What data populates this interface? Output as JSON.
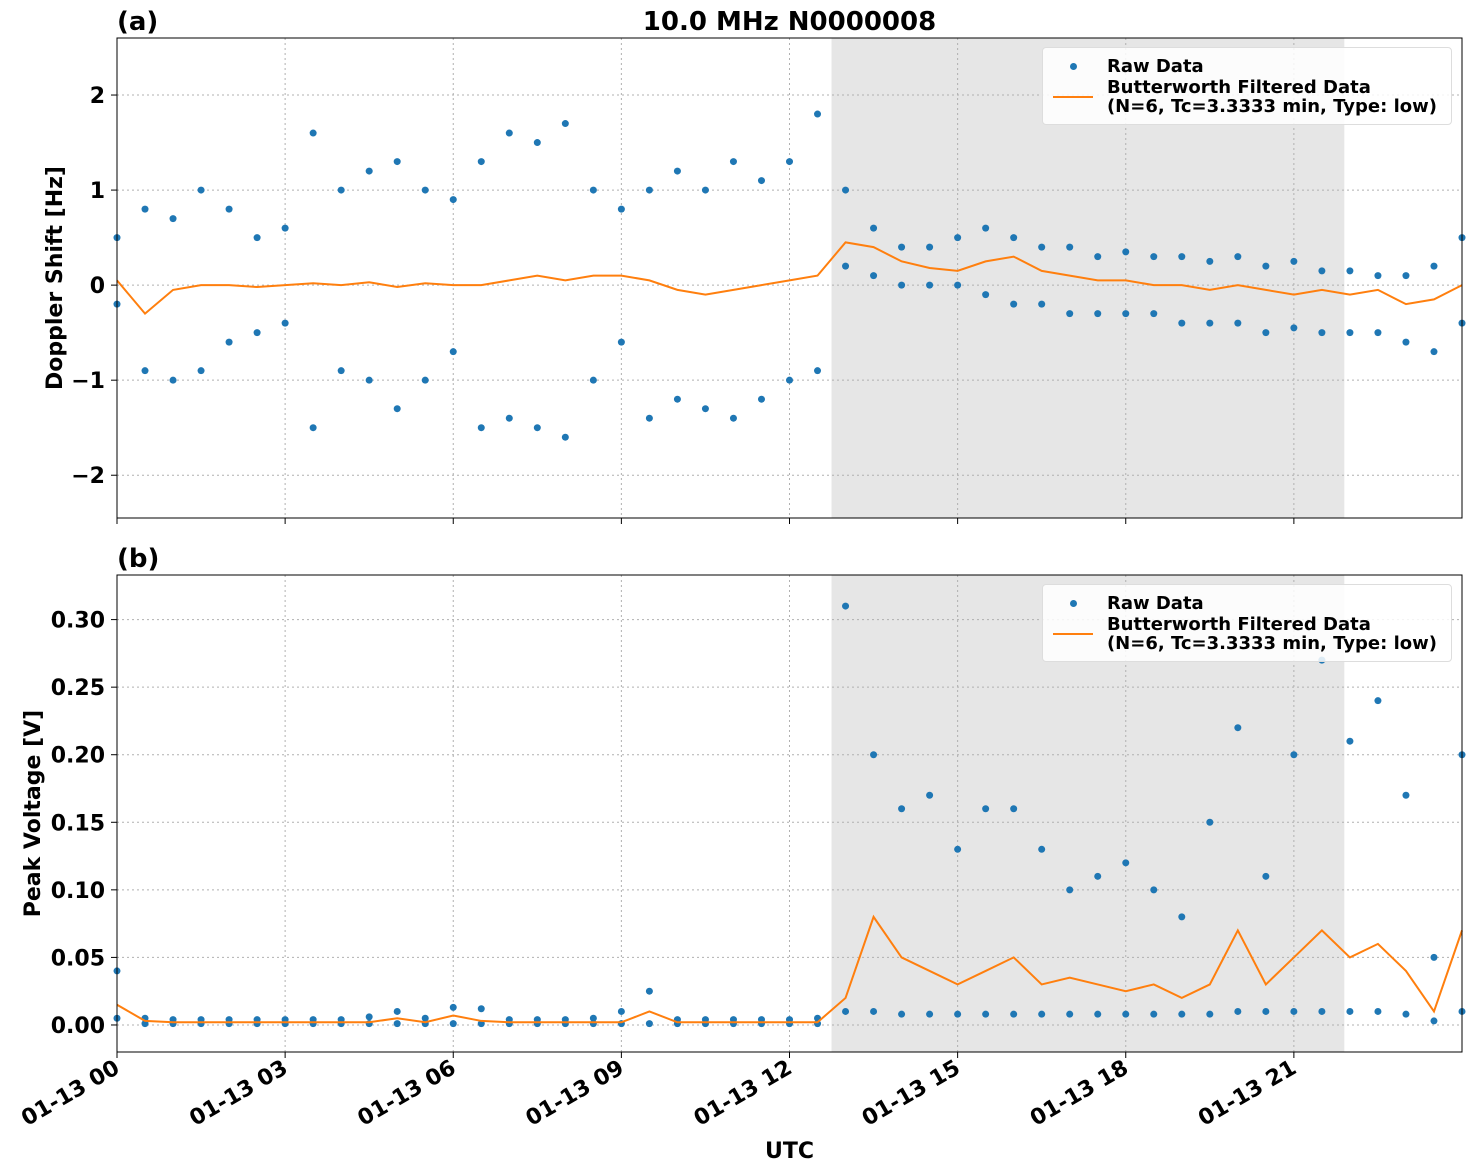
{
  "chart_data": [
    {
      "type": "scatter",
      "title": "10.0 MHz N0000008",
      "panel_label": "(a)",
      "ylabel": "Doppler Shift [Hz]",
      "xlim": [
        0,
        24
      ],
      "xticks": [
        0,
        3,
        6,
        9,
        12,
        15,
        18,
        21
      ],
      "xtick_labels": false,
      "ylim": [
        -2.45,
        2.6
      ],
      "yticks": [
        {
          "value": -2,
          "label": "−2"
        },
        {
          "value": -1,
          "label": "−1"
        },
        0,
        1,
        2
      ],
      "grid": true,
      "shade": [
        12.75,
        21.9
      ],
      "legend": "upper right",
      "series": [
        {
          "name": "Raw Data",
          "color": "#1f77b4",
          "kind": "points",
          "x": [
            0,
            0,
            0.5,
            0.5,
            1,
            1,
            1.5,
            1.5,
            2,
            2,
            2.5,
            2.5,
            3,
            3,
            3.5,
            3.5,
            4,
            4,
            4.5,
            4.5,
            5,
            5,
            5.5,
            5.5,
            6,
            6,
            6.5,
            6.5,
            7,
            7,
            7.5,
            7.5,
            8,
            8,
            8.5,
            8.5,
            9,
            9,
            9.5,
            9.5,
            10,
            10,
            10.5,
            10.5,
            11,
            11,
            11.5,
            11.5,
            12,
            12,
            12.5,
            12.5,
            13,
            13,
            13.5,
            13.5,
            14,
            14,
            14.5,
            14.5,
            15,
            15,
            15.5,
            15.5,
            16,
            16,
            16.5,
            16.5,
            17,
            17,
            17.5,
            17.5,
            18,
            18,
            18.5,
            18.5,
            19,
            19,
            19.5,
            19.5,
            20,
            20,
            20.5,
            20.5,
            21,
            21,
            21.5,
            21.5,
            22,
            22,
            22.5,
            22.5,
            23,
            23,
            23.5,
            23.5,
            24,
            24
          ],
          "values": [
            0.5,
            -0.2,
            0.8,
            -0.9,
            0.7,
            -1.0,
            1.0,
            -0.9,
            0.8,
            -0.6,
            0.5,
            -0.5,
            0.6,
            -0.4,
            1.6,
            -1.5,
            1.0,
            -0.9,
            1.2,
            -1.0,
            1.3,
            -1.3,
            1.0,
            -1.0,
            0.9,
            -0.7,
            1.3,
            -1.5,
            1.6,
            -1.4,
            1.5,
            -1.5,
            1.7,
            -1.6,
            1.0,
            -1.0,
            0.8,
            -0.6,
            1.0,
            -1.4,
            1.2,
            -1.2,
            1.0,
            -1.3,
            1.3,
            -1.4,
            1.1,
            -1.2,
            1.3,
            -1.0,
            1.8,
            -0.9,
            1.0,
            0.2,
            0.6,
            0.1,
            0.4,
            0,
            0.4,
            0,
            0.5,
            0,
            0.6,
            -0.1,
            0.5,
            -0.2,
            0.4,
            -0.2,
            0.4,
            -0.3,
            0.3,
            -0.3,
            0.35,
            -0.3,
            0.3,
            -0.3,
            0.3,
            -0.4,
            0.25,
            -0.4,
            0.3,
            -0.4,
            0.2,
            -0.5,
            0.25,
            -0.45,
            0.15,
            -0.5,
            0.15,
            -0.5,
            0.1,
            -0.5,
            0.1,
            -0.6,
            0.2,
            -0.7,
            0.5,
            -0.4
          ]
        },
        {
          "name": "Butterworth Filtered Data\n(N=6, Tc=3.3333 min, Type: low)",
          "color": "#ff7f0e",
          "kind": "line",
          "x": [
            0,
            0.5,
            1,
            1.5,
            2,
            2.5,
            3,
            3.5,
            4,
            4.5,
            5,
            5.5,
            6,
            6.5,
            7,
            7.5,
            8,
            8.5,
            9,
            9.5,
            10,
            10.5,
            11,
            11.5,
            12,
            12.5,
            13,
            13.5,
            14,
            14.5,
            15,
            15.5,
            16,
            16.5,
            17,
            17.5,
            18,
            18.5,
            19,
            19.5,
            20,
            20.5,
            21,
            21.5,
            22,
            22.5,
            23,
            23.5,
            24
          ],
          "values": [
            0.05,
            -0.3,
            -0.05,
            0,
            0,
            -0.02,
            0,
            0.02,
            0,
            0.03,
            -0.02,
            0.02,
            0,
            0,
            0.05,
            0.1,
            0.05,
            0.1,
            0.1,
            0.05,
            -0.05,
            -0.1,
            -0.05,
            0,
            0.05,
            0.1,
            0.45,
            0.4,
            0.25,
            0.18,
            0.15,
            0.25,
            0.3,
            0.15,
            0.1,
            0.05,
            0.05,
            0,
            0,
            -0.05,
            0,
            -0.05,
            -0.1,
            -0.05,
            -0.1,
            -0.05,
            -0.2,
            -0.15,
            0
          ]
        }
      ]
    },
    {
      "type": "scatter",
      "panel_label": "(b)",
      "ylabel": "Peak Voltage [V]",
      "xlabel": "UTC",
      "xlim": [
        0,
        24
      ],
      "xticks": [
        {
          "value": 0,
          "label": "01-13 00"
        },
        {
          "value": 3,
          "label": "01-13 03"
        },
        {
          "value": 6,
          "label": "01-13 06"
        },
        {
          "value": 9,
          "label": "01-13 09"
        },
        {
          "value": 12,
          "label": "01-13 12"
        },
        {
          "value": 15,
          "label": "01-13 15"
        },
        {
          "value": 18,
          "label": "01-13 18"
        },
        {
          "value": 21,
          "label": "01-13 21"
        }
      ],
      "xtick_labels": true,
      "ylim": [
        -0.02,
        0.333
      ],
      "yticks": [
        {
          "value": 0,
          "label": "0.00"
        },
        {
          "value": 0.05,
          "label": "0.05"
        },
        {
          "value": 0.1,
          "label": "0.10"
        },
        {
          "value": 0.15,
          "label": "0.15"
        },
        {
          "value": 0.2,
          "label": "0.20"
        },
        {
          "value": 0.25,
          "label": "0.25"
        },
        {
          "value": 0.3,
          "label": "0.30"
        }
      ],
      "grid": true,
      "shade": [
        12.75,
        21.9
      ],
      "legend": "upper right",
      "series": [
        {
          "name": "Raw Data",
          "color": "#1f77b4",
          "kind": "points",
          "x": [
            0,
            0,
            0.5,
            0.5,
            1,
            1,
            1.5,
            1.5,
            2,
            2,
            2.5,
            2.5,
            3,
            3,
            3.5,
            3.5,
            4,
            4,
            4.5,
            4.5,
            5,
            5,
            5.5,
            5.5,
            6,
            6,
            6.5,
            6.5,
            7,
            7,
            7.5,
            7.5,
            8,
            8,
            8.5,
            8.5,
            9,
            9,
            9.5,
            9.5,
            10,
            10,
            10.5,
            10.5,
            11,
            11,
            11.5,
            11.5,
            12,
            12,
            12.5,
            12.5,
            13,
            13,
            13.5,
            13.5,
            14,
            14,
            14.5,
            14.5,
            15,
            15,
            15.5,
            15.5,
            16,
            16,
            16.5,
            16.5,
            17,
            17,
            17.5,
            17.5,
            18,
            18,
            18.5,
            18.5,
            19,
            19,
            19.5,
            19.5,
            20,
            20,
            20.5,
            20.5,
            21,
            21,
            21.5,
            21.5,
            22,
            22,
            22.5,
            22.5,
            23,
            23,
            23.5,
            23.5,
            24,
            24
          ],
          "values": [
            0.04,
            0.005,
            0.005,
            0.001,
            0.004,
            0.001,
            0.004,
            0.001,
            0.004,
            0.001,
            0.004,
            0.001,
            0.004,
            0.001,
            0.004,
            0.001,
            0.004,
            0.001,
            0.006,
            0.001,
            0.01,
            0.001,
            0.005,
            0.001,
            0.013,
            0.001,
            0.012,
            0.001,
            0.004,
            0.001,
            0.004,
            0.001,
            0.004,
            0.001,
            0.005,
            0.001,
            0.01,
            0.001,
            0.025,
            0.001,
            0.004,
            0.001,
            0.004,
            0.001,
            0.004,
            0.001,
            0.004,
            0.001,
            0.004,
            0.001,
            0.005,
            0.001,
            0.31,
            0.01,
            0.2,
            0.01,
            0.16,
            0.008,
            0.17,
            0.008,
            0.13,
            0.008,
            0.16,
            0.008,
            0.16,
            0.008,
            0.13,
            0.008,
            0.1,
            0.008,
            0.11,
            0.008,
            0.12,
            0.008,
            0.1,
            0.008,
            0.08,
            0.008,
            0.15,
            0.008,
            0.22,
            0.01,
            0.11,
            0.01,
            0.2,
            0.01,
            0.27,
            0.01,
            0.21,
            0.01,
            0.24,
            0.01,
            0.17,
            0.008,
            0.05,
            0.003,
            0.2,
            0.01
          ]
        },
        {
          "name": "Butterworth Filtered Data\n(N=6, Tc=3.3333 min, Type: low)",
          "color": "#ff7f0e",
          "kind": "line",
          "x": [
            0,
            0.5,
            1,
            1.5,
            2,
            2.5,
            3,
            3.5,
            4,
            4.5,
            5,
            5.5,
            6,
            6.5,
            7,
            7.5,
            8,
            8.5,
            9,
            9.5,
            10,
            10.5,
            11,
            11.5,
            12,
            12.5,
            13,
            13.5,
            14,
            14.5,
            15,
            15.5,
            16,
            16.5,
            17,
            17.5,
            18,
            18.5,
            19,
            19.5,
            20,
            20.5,
            21,
            21.5,
            22,
            22.5,
            23,
            23.5,
            24
          ],
          "values": [
            0.015,
            0.003,
            0.002,
            0.002,
            0.002,
            0.002,
            0.002,
            0.002,
            0.002,
            0.002,
            0.005,
            0.002,
            0.007,
            0.003,
            0.002,
            0.002,
            0.002,
            0.002,
            0.002,
            0.01,
            0.002,
            0.002,
            0.002,
            0.002,
            0.002,
            0.002,
            0.02,
            0.08,
            0.05,
            0.04,
            0.03,
            0.04,
            0.05,
            0.03,
            0.035,
            0.03,
            0.025,
            0.03,
            0.02,
            0.03,
            0.07,
            0.03,
            0.05,
            0.07,
            0.05,
            0.06,
            0.04,
            0.01,
            0.07
          ]
        }
      ]
    }
  ]
}
